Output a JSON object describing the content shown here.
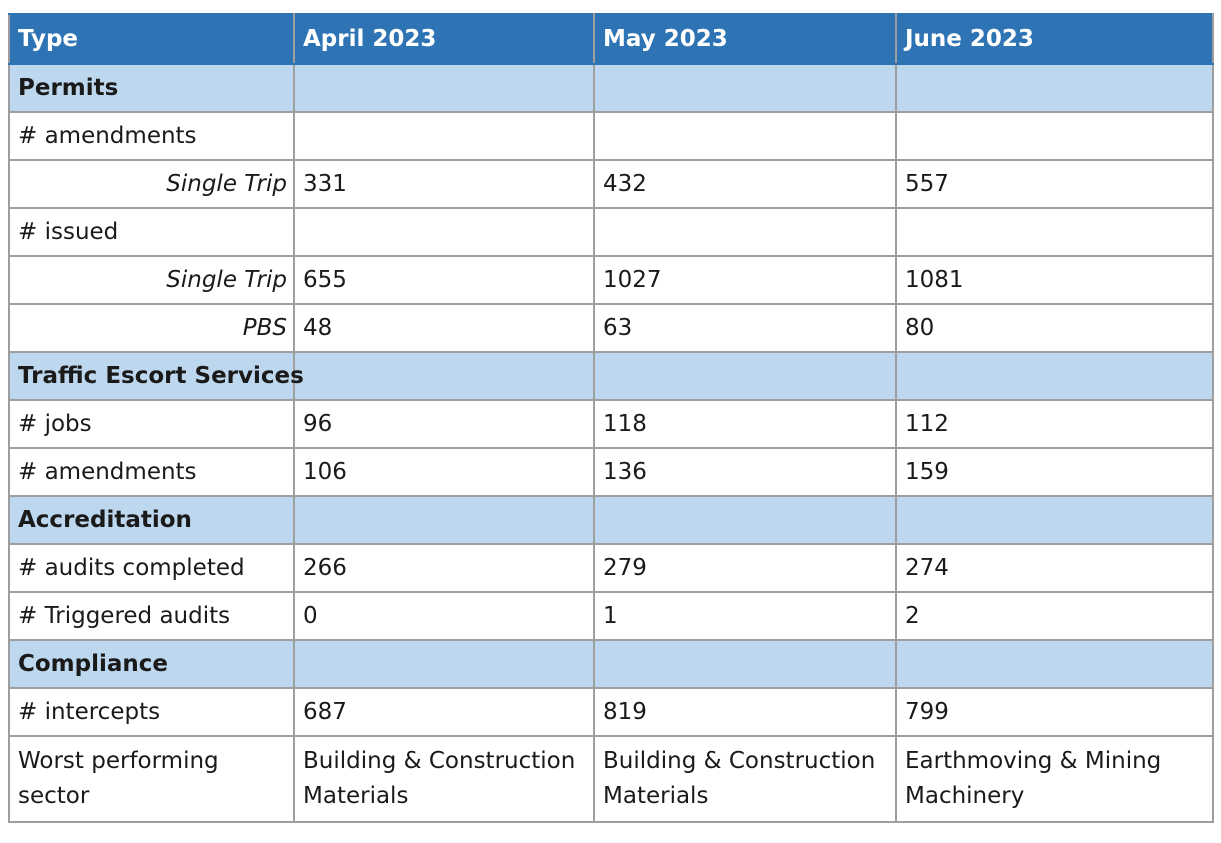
{
  "header": {
    "type": "Type",
    "months": [
      "April 2023",
      "May 2023",
      "June 2023"
    ]
  },
  "rows": {
    "permits": {
      "label": "Permits"
    },
    "permits_amendments": {
      "label": "# amendments"
    },
    "permits_amend_single": {
      "label": "Single Trip",
      "values": [
        "331",
        "432",
        "557"
      ]
    },
    "permits_issued": {
      "label": "# issued"
    },
    "permits_issued_single": {
      "label": "Single Trip",
      "values": [
        "655",
        "1027",
        "1081"
      ]
    },
    "permits_issued_pbs": {
      "label": "PBS",
      "values": [
        "48",
        "63",
        "80"
      ]
    },
    "tes": {
      "label": "Traffic Escort Services"
    },
    "tes_jobs": {
      "label": "# jobs",
      "values": [
        "96",
        "118",
        "112"
      ]
    },
    "tes_amendments": {
      "label": "# amendments",
      "values": [
        "106",
        "136",
        "159"
      ]
    },
    "accreditation": {
      "label": "Accreditation"
    },
    "acc_audits": {
      "label": "# audits completed",
      "values": [
        "266",
        "279",
        "274"
      ]
    },
    "acc_triggered": {
      "label": "# Triggered audits",
      "values": [
        "0",
        "1",
        "2"
      ]
    },
    "compliance": {
      "label": "Compliance"
    },
    "comp_intercepts": {
      "label": "# intercepts",
      "values": [
        "687",
        "819",
        "799"
      ]
    },
    "comp_worst": {
      "label": "Worst performing sector",
      "values": [
        "Building & Construction Materials",
        "Building & Construction Materials",
        "Earthmoving & Mining Machinery"
      ]
    }
  },
  "colors": {
    "header_bg": "#2e74b5",
    "section_bg": "#bdd7ee",
    "border": "#9e9e9e"
  }
}
